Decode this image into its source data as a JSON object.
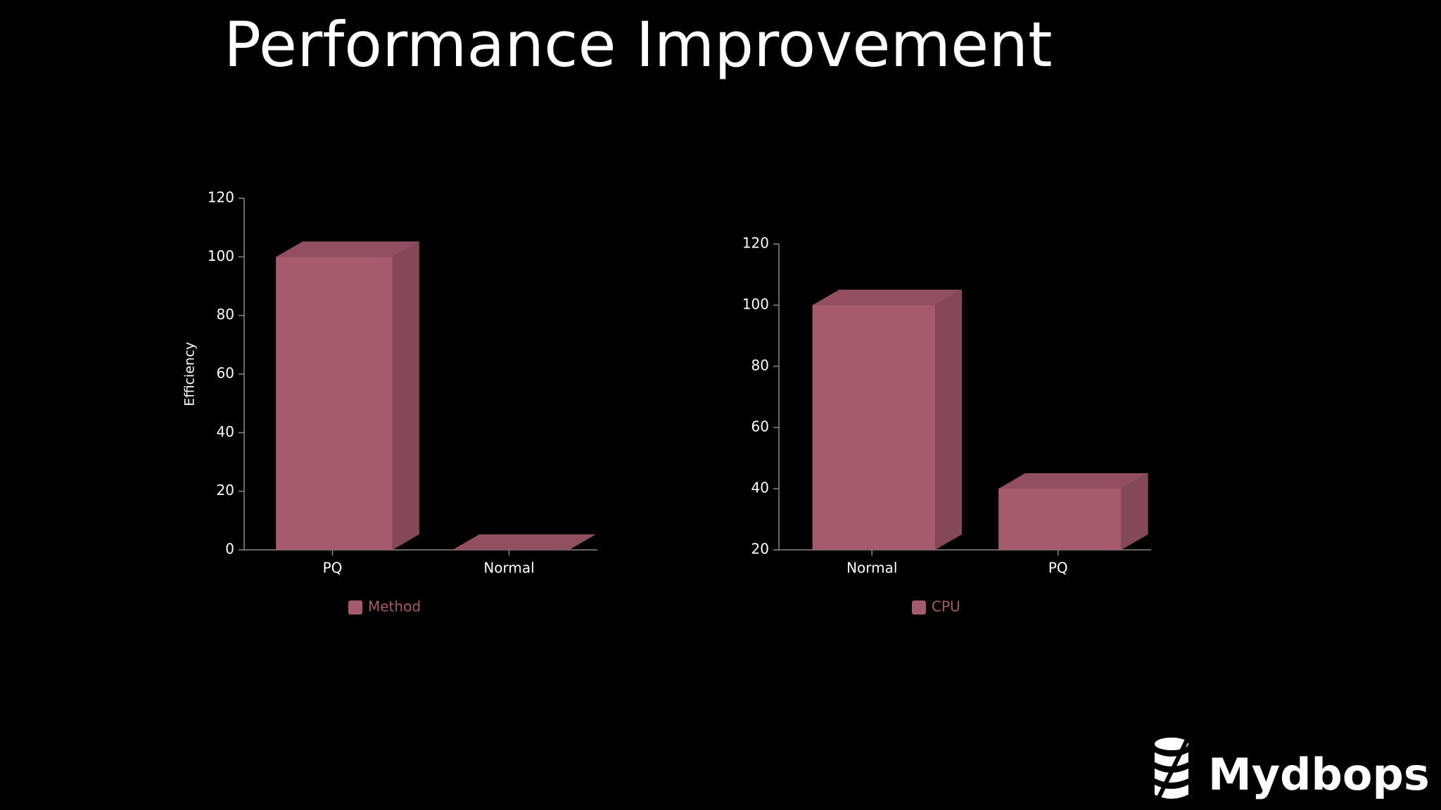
{
  "title": "Performance Improvement",
  "logo": "Mydbops",
  "chart_data": [
    {
      "type": "bar",
      "ylabel": "Efficiency",
      "categories": [
        "PQ",
        "Normal"
      ],
      "series": [
        {
          "name": "Method",
          "color": "#a65a6e",
          "values": [
            100,
            0
          ]
        }
      ],
      "ylim": [
        0,
        120
      ],
      "yticks": [
        0,
        20,
        40,
        60,
        80,
        100,
        120
      ]
    },
    {
      "type": "bar",
      "categories": [
        "Normal",
        "PQ"
      ],
      "series": [
        {
          "name": "CPU",
          "color": "#a65a6e",
          "values": [
            100,
            40
          ]
        }
      ],
      "ylim": [
        20,
        120
      ],
      "yticks": [
        20,
        40,
        60,
        80,
        100,
        120
      ]
    }
  ]
}
